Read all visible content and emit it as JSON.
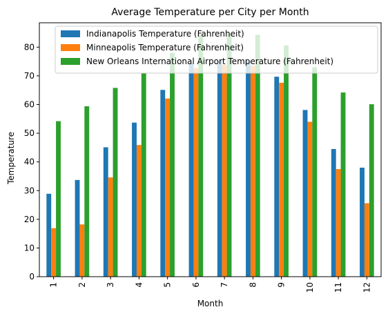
{
  "chart_data": {
    "type": "bar",
    "title": "Average Temperature per City per Month",
    "xlabel": "Month",
    "ylabel": "Temperature",
    "categories": [
      "1",
      "2",
      "3",
      "4",
      "5",
      "6",
      "7",
      "8",
      "9",
      "10",
      "11",
      "12"
    ],
    "ylim": [
      0,
      88.5
    ],
    "yticks": [
      0,
      10,
      20,
      30,
      40,
      50,
      60,
      70,
      80
    ],
    "grid": false,
    "legend_position": "top-right",
    "series": [
      {
        "name": "Indianapolis Temperature (Fahrenheit)",
        "color": "#1f77b4",
        "values": [
          28.9,
          33.7,
          45.1,
          53.7,
          65.1,
          74.2,
          75.3,
          75.2,
          69.7,
          58.1,
          44.5,
          38.0
        ]
      },
      {
        "name": "Minneapolis Temperature (Fahrenheit)",
        "color": "#ff7f0e",
        "values": [
          16.9,
          18.2,
          34.6,
          45.9,
          62.1,
          72.7,
          73.8,
          73.5,
          67.6,
          54.0,
          37.5,
          25.6
        ]
      },
      {
        "name": "New Orleans International Airport Temperature (Fahrenheit)",
        "color": "#2ca02c",
        "values": [
          54.2,
          59.4,
          65.8,
          70.9,
          78.0,
          84.3,
          84.7,
          84.3,
          80.6,
          73.0,
          64.2,
          60.1
        ]
      }
    ]
  }
}
